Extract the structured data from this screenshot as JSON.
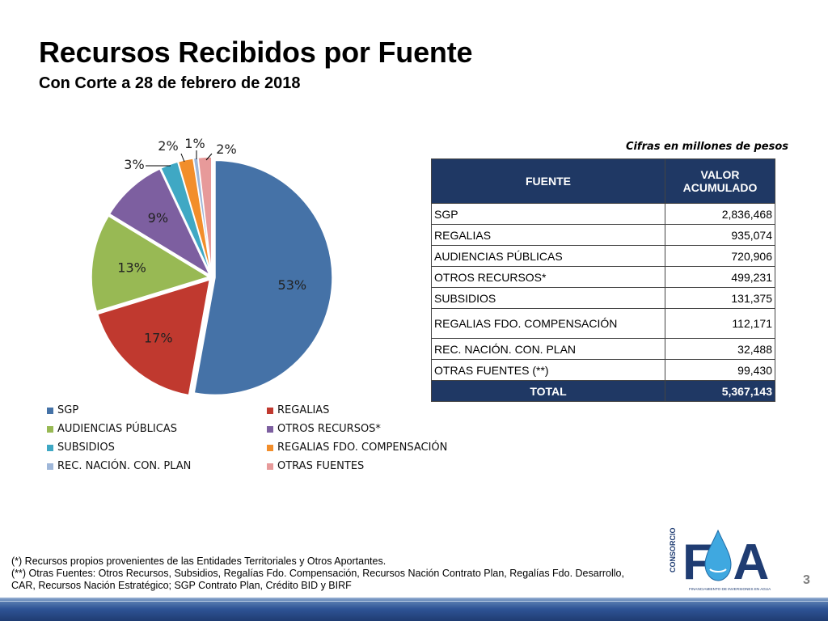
{
  "title": "Recursos Recibidos por Fuente",
  "subtitle": "Con Corte a 28 de febrero de 2018",
  "note": "Cifras en millones de pesos",
  "table": {
    "header": {
      "col1": "FUENTE",
      "col2": "VALOR ACUMULADO"
    },
    "rows": [
      {
        "fuente": "SGP",
        "valor": "2,836,468"
      },
      {
        "fuente": "REGALIAS",
        "valor": "935,074"
      },
      {
        "fuente": "AUDIENCIAS PÚBLICAS",
        "valor": "720,906"
      },
      {
        "fuente": "OTROS RECURSOS*",
        "valor": "499,231"
      },
      {
        "fuente": "SUBSIDIOS",
        "valor": "131,375"
      },
      {
        "fuente": "REGALIAS FDO. COMPENSACIÓN",
        "valor": "112,171"
      },
      {
        "fuente": "REC. NACIÓN.  CON. PLAN",
        "valor": "32,488"
      },
      {
        "fuente": "OTRAS FUENTES (**)",
        "valor": "99,430"
      }
    ],
    "total": {
      "label": "TOTAL",
      "valor": "5,367,143"
    }
  },
  "chart_data": {
    "type": "pie",
    "title": "",
    "categories": [
      "SGP",
      "REGALIAS",
      "AUDIENCIAS PÚBLICAS",
      "OTROS RECURSOS*",
      "SUBSIDIOS",
      "REGALIAS FDO. COMPENSACIÓN",
      "REC. NACIÓN.  CON. PLAN",
      "OTRAS FUENTES"
    ],
    "values": [
      2836468,
      935074,
      720906,
      499231,
      131375,
      112171,
      32488,
      99430
    ],
    "labels": [
      "53%",
      "17%",
      "13%",
      "9%",
      "3%",
      "2%",
      "1%",
      "2%"
    ],
    "colors": [
      "#4572a7",
      "#c0392f",
      "#98b954",
      "#7d5fa0",
      "#3fa8c4",
      "#f28e2b",
      "#9fb7d9",
      "#e79a9a"
    ],
    "legend_position": "bottom",
    "exploded": true
  },
  "footnotes": {
    "line1": "(*) Recursos propios provenientes de  las Entidades Territoriales y Otros Aportantes.",
    "line2": "(**) Otras Fuentes: Otros Recursos, Subsidios, Regalías Fdo. Compensación, Recursos Nación Contrato Plan, Regalías Fdo. Desarrollo, CAR, Recursos Nación Estratégico; SGP Contrato Plan, Crédito BID y BIRF"
  },
  "logo": {
    "side_text": "CONSORCIO",
    "letters": "FA",
    "tagline": "FINANCIAMIENTO DE INVERSIONES EN AGUA"
  },
  "page_number": "3"
}
